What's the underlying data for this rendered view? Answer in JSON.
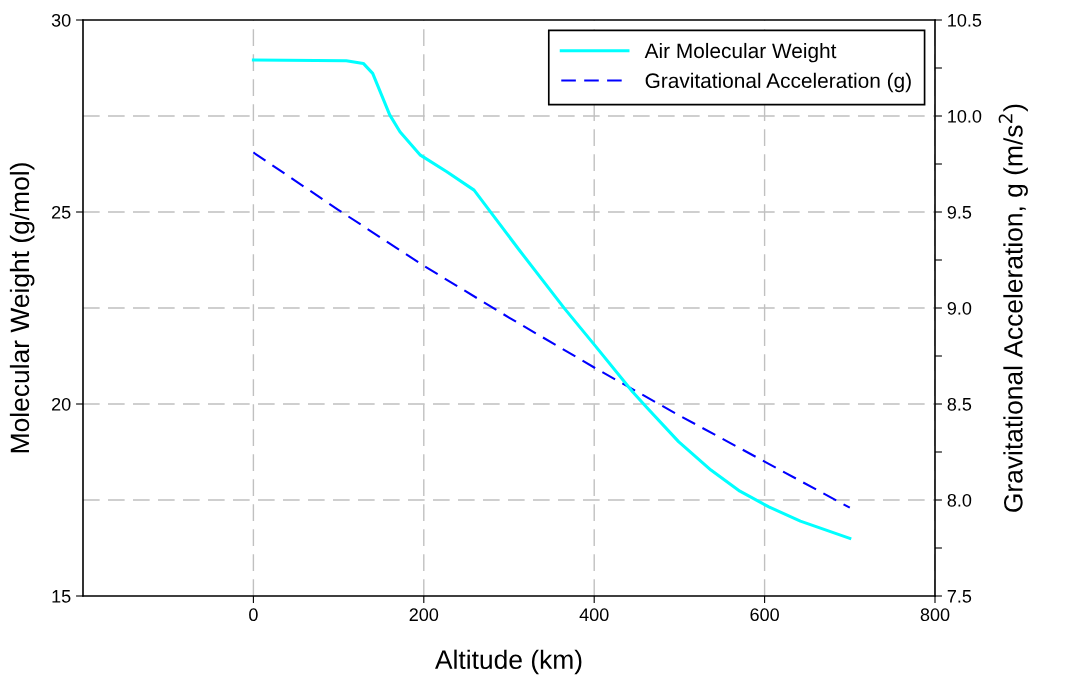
{
  "chart_data": {
    "type": "line",
    "xlabel": "Altitude (km)",
    "ylabel": "Molecular Weight (g/mol)",
    "y2label": "Gravitational Acceleration, g (m/s$^{2}$)",
    "xlim": [
      -200,
      800
    ],
    "xticks": [
      0,
      200,
      400,
      600,
      800
    ],
    "ylim": [
      15,
      30
    ],
    "yticks": [
      15,
      20,
      25,
      30
    ],
    "y2lim": [
      7.5,
      10.5
    ],
    "y2ticks": [
      7.5,
      {
        "value": 7.75,
        "label": null
      },
      {
        "value": 8,
        "label": "8.0"
      },
      {
        "value": 8.25,
        "label": null
      },
      8.5,
      {
        "value": 8.75,
        "label": null
      },
      {
        "value": 9,
        "label": "9.0"
      },
      {
        "value": 9.25,
        "label": null
      },
      9.5,
      {
        "value": 9.75,
        "label": null
      },
      {
        "value": 10,
        "label": "10.0"
      },
      {
        "value": 10.25,
        "label": null
      },
      10.5
    ],
    "grid": true,
    "legend": "top right",
    "series": [
      {
        "name": "Air Molecular Weight",
        "color": "#00ffff",
        "line_style": "solid",
        "x": [
          0,
          109,
          129,
          140,
          160,
          172,
          196,
          227,
          259,
          312,
          365,
          401,
          445,
          462,
          499,
          537,
          571,
          605,
          642,
          700
        ],
        "values": [
          28.96,
          28.94,
          28.87,
          28.61,
          27.53,
          27.09,
          26.48,
          26.05,
          25.57,
          24.01,
          22.49,
          21.52,
          20.32,
          19.9,
          19.02,
          18.28,
          17.73,
          17.32,
          16.95,
          16.5
        ]
      },
      {
        "name": "Gravitational Acceleration (g)",
        "color": "#0000ff",
        "line_style": "dashed",
        "axis": "y2",
        "x": [
          0,
          100,
          200,
          300,
          400,
          500,
          600,
          700
        ],
        "values": [
          9.81,
          9.51,
          9.22,
          8.95,
          8.69,
          8.44,
          8.2,
          7.96
        ]
      }
    ]
  }
}
